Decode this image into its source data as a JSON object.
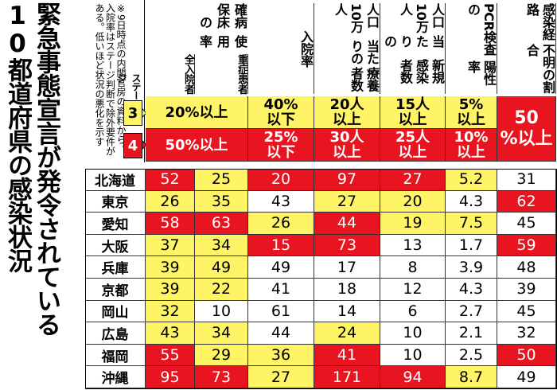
{
  "title_lines": [
    "緊急事態宣言が発令されている",
    "10都道府県の感染状況"
  ],
  "note": "※9日時点の内閣官房の資料から。入院率はステージ判断で除外要件がある。低いほど状況の悪化を示す",
  "group_header": [
    "確保",
    "病床の",
    "使用率"
  ],
  "columns": [
    [
      "全入",
      "院者"
    ],
    [
      "重症",
      "患者"
    ],
    [
      "入院率"
    ],
    [
      "人口10万人",
      "当たりの",
      "療養者数"
    ],
    [
      "人口10万人",
      "当たりの",
      "新規感染者数"
    ],
    [
      "PCR検査の",
      "陽性率"
    ],
    [
      "感染経路",
      "不明の割合"
    ]
  ],
  "palette": {
    "R": "#e8141f",
    "Y": "#fff465",
    "W": "#ffffff"
  },
  "stages": {
    "label": "ステージ",
    "levels": [
      {
        "name": "3",
        "marker_fill": "Y",
        "fills": "YYYYYR",
        "criteria": [
          [
            "20%以上"
          ],
          [
            "40%",
            "以下"
          ],
          [
            "20人",
            "以上"
          ],
          [
            "15人",
            "以上"
          ],
          [
            "5%",
            "以上"
          ],
          [
            "50",
            "%以上"
          ]
        ]
      },
      {
        "name": "4",
        "marker_fill": "R",
        "fills": "RRRRR",
        "criteria": [
          [
            "50%以上"
          ],
          [
            "25%",
            "以下"
          ],
          [
            "30人",
            "以上"
          ],
          [
            "25人",
            "以上"
          ],
          [
            "10%",
            "以上"
          ]
        ]
      }
    ]
  },
  "rows": [
    {
      "name": "北海道",
      "values": [
        52,
        25,
        20,
        97,
        27,
        5.2,
        31
      ],
      "fills": "RYRRRYW"
    },
    {
      "name": "東京",
      "values": [
        26,
        35,
        43,
        27,
        20,
        4.3,
        62
      ],
      "fills": "YYWYYWR"
    },
    {
      "name": "愛知",
      "values": [
        58,
        63,
        26,
        44,
        19,
        7.5,
        45
      ],
      "fills": "RRYRYYW"
    },
    {
      "name": "大阪",
      "values": [
        37,
        34,
        15,
        73,
        13,
        1.7,
        59
      ],
      "fills": "YYRRWWR"
    },
    {
      "name": "兵庫",
      "values": [
        39,
        49,
        49,
        17,
        8,
        3.9,
        48
      ],
      "fills": "YYWWWWW"
    },
    {
      "name": "京都",
      "values": [
        39,
        22,
        41,
        18,
        12,
        4.3,
        39
      ],
      "fills": "YYWWWWW"
    },
    {
      "name": "岡山",
      "values": [
        32,
        10,
        61,
        14,
        6,
        2.7,
        45
      ],
      "fills": "YWWWWWW"
    },
    {
      "name": "広島",
      "values": [
        43,
        34,
        44,
        24,
        10,
        2.1,
        32
      ],
      "fills": "YYWYWWW"
    },
    {
      "name": "福岡",
      "values": [
        55,
        29,
        36,
        41,
        10,
        2.5,
        50
      ],
      "fills": "RYYRWWR"
    },
    {
      "name": "沖縄",
      "values": [
        95,
        73,
        27,
        171,
        94,
        8.7,
        49
      ],
      "fills": "RRYRRYW"
    }
  ]
}
